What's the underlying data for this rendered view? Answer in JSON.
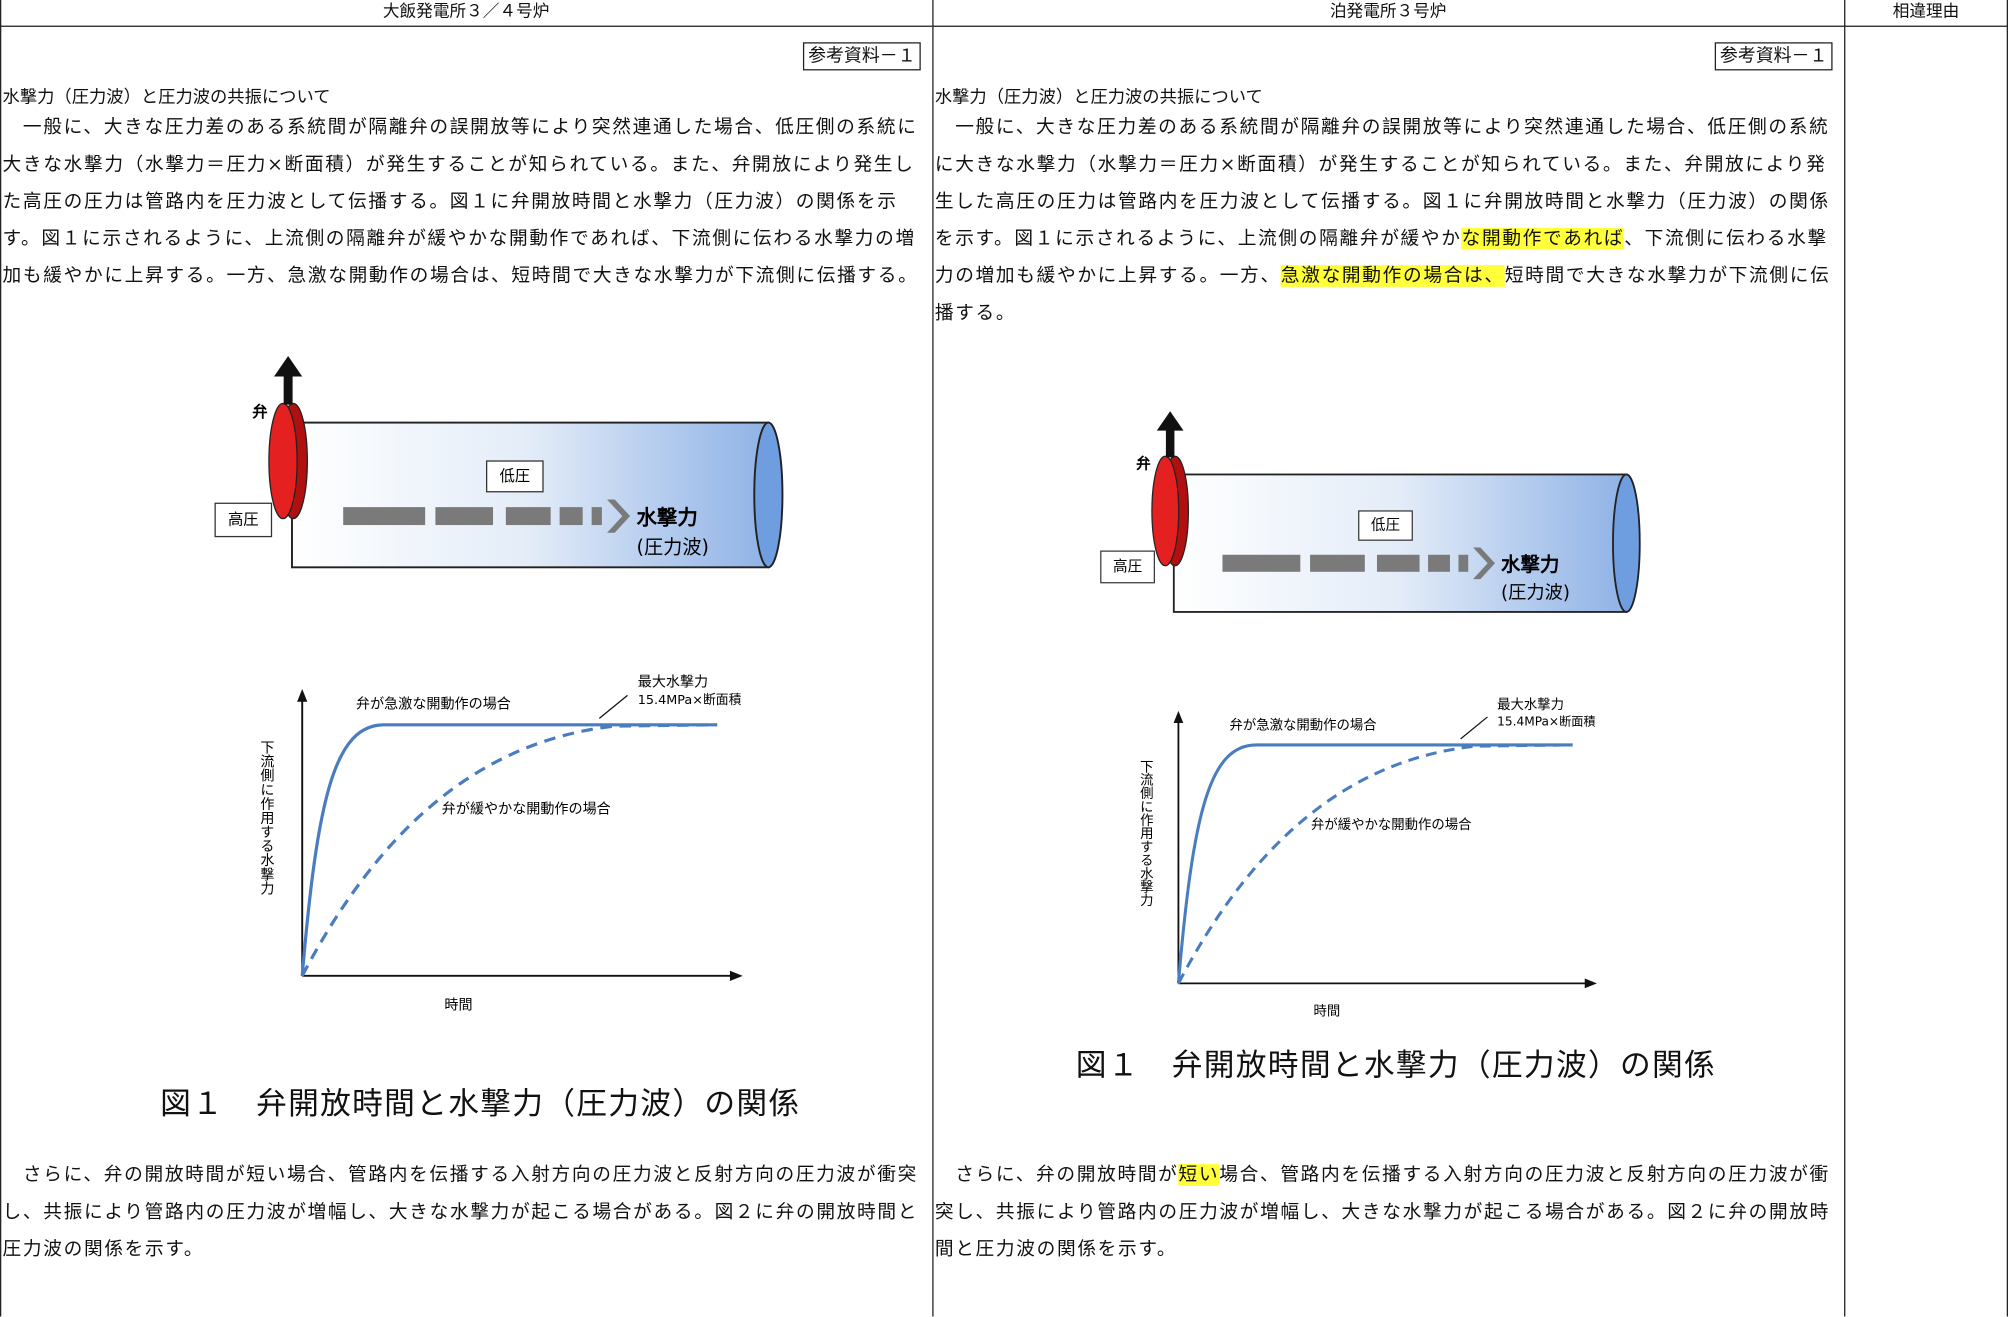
{
  "header": [
    "大飯発電所３／４号炉",
    "泊発電所３号炉",
    "相違理由"
  ],
  "columns": [
    {
      "reference": "参考資料－１",
      "heading": "水撃力（圧力波）と圧力波の共振について",
      "paragraph1": [
        {
          "text": "　一般に、大きな圧力差のある系統間が隔離弁の誤開放等により突然連通した場合、低圧側の系統に大きな水撃力（水撃力＝圧力×断面積）が発生することが知られている。また、弁開放により発生した高圧の圧力は管路内を圧力波として伝播する。図１に弁開放時間と水撃力（圧力波）の関係を示す。図１に示されるように、上流側の隔離弁が緩やかな開動作であれば、下流側に伝わる水撃力の増加も緩やかに上昇する。一方、急激な開動作の場合は、短時間で大きな水撃力が下流側に伝播する。"
        }
      ],
      "figure": {
        "valve": "弁",
        "high_pressure": "高圧",
        "low_pressure": "低圧",
        "force": "水撃力",
        "wave": "(圧力波)",
        "rapid": "弁が急激な開動作の場合",
        "max_force": "最大水撃力",
        "max_force_value": "15.4MPa×断面積",
        "slow": "弁が緩やかな開動作の場合",
        "y_axis": "下流側に作用する水撃力",
        "x_axis": "時間",
        "caption": "図１　弁開放時間と水撃力（圧力波）の関係"
      },
      "paragraph2": [
        {
          "text": "　さらに、弁の開放時間が短い場合、管路内を伝播する入射方向の圧力波と反射方向の圧力波が衝突し、共振により管路内の圧力波が増幅し、大きな水撃力が起こる場合がある。図２に弁の開放時間と圧力波の関係を示す。"
        }
      ]
    },
    {
      "reference": "参考資料－１",
      "heading": "水撃力（圧力波）と圧力波の共振について",
      "paragraph1": [
        {
          "text": "　一般に、大きな圧力差のある系統間が隔離弁の誤開放等により突然連通した場合、低圧側の系統に大きな水撃力（水撃力＝圧力×断面積）が発生することが知られている。また、弁開放により発生した高圧の圧力は管路内を圧力波として伝播する。図１に弁開放時間と水撃力（圧力波）の関係を示す。図１に示されるように、上流側の隔離弁が緩やか"
        },
        {
          "text": "な開動作であれば",
          "highlight": true
        },
        {
          "text": "、下流側に伝わる水撃力の増加も緩やかに上昇する。一方、"
        },
        {
          "text": "急激な開動作の場合は、",
          "highlight": true
        },
        {
          "text": "短時間で大きな水撃力が下流側に伝播する。"
        }
      ],
      "figure": {
        "valve": "弁",
        "high_pressure": "高圧",
        "low_pressure": "低圧",
        "force": "水撃力",
        "wave": "(圧力波)",
        "rapid": "弁が急激な開動作の場合",
        "max_force": "最大水撃力",
        "max_force_value": "15.4MPa×断面積",
        "slow": "弁が緩やかな開動作の場合",
        "y_axis": "下流側に作用する水撃力",
        "x_axis": "時間",
        "caption": "図１　弁開放時間と水撃力（圧力波）の関係"
      },
      "paragraph2": [
        {
          "text": "　さらに、弁の開放時間が"
        },
        {
          "text": "短い",
          "highlight": true
        },
        {
          "text": "場合、管路内を伝播する入射方向の圧力波と反射方向の圧力波が衝突し、共振により管路内の圧力波が増幅し、大きな水撃力が起こる場合がある。図２に弁の開放時間と圧力波の関係を示す。"
        }
      ]
    }
  ]
}
